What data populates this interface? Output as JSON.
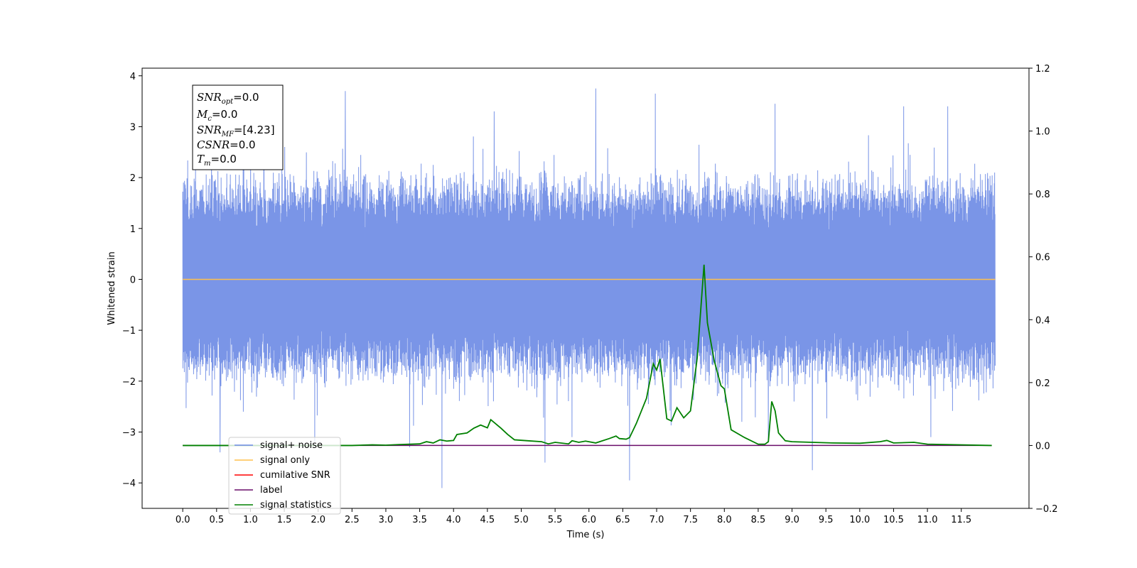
{
  "chart_data": {
    "type": "line",
    "title": "",
    "xlabel": "Time (s)",
    "ylabel": "Whitened strain",
    "y2label": "",
    "xlim": [
      -0.6,
      12.5
    ],
    "ylim": [
      -4.5,
      4.15
    ],
    "y2lim": [
      -0.2,
      1.2
    ],
    "x_ticks": [
      0.0,
      0.5,
      1.0,
      1.5,
      2.0,
      2.5,
      3.0,
      3.5,
      4.0,
      4.5,
      5.0,
      5.5,
      6.0,
      6.5,
      7.0,
      7.5,
      8.0,
      8.5,
      9.0,
      9.5,
      10.0,
      10.5,
      11.0,
      11.5
    ],
    "x_tick_labels": [
      "0.0",
      "0.5",
      "1.0",
      "1.5",
      "2.0",
      "2.5",
      "3.0",
      "3.5",
      "4.0",
      "4.5",
      "5.0",
      "5.5",
      "6.0",
      "6.5",
      "7.0",
      "7.5",
      "8.0",
      "8.5",
      "9.0",
      "9.5",
      "10.0",
      "10.5",
      "11.0",
      "11.5"
    ],
    "y_ticks": [
      -4,
      -3,
      -2,
      -1,
      0,
      1,
      2,
      3,
      4
    ],
    "y_tick_labels": [
      "−4",
      "−3",
      "−2",
      "−1",
      "0",
      "1",
      "2",
      "3",
      "4"
    ],
    "y2_ticks": [
      -0.2,
      0.0,
      0.2,
      0.4,
      0.6,
      0.8,
      1.0,
      1.2
    ],
    "y2_tick_labels": [
      "−0.2",
      "0.0",
      "0.2",
      "0.4",
      "0.6",
      "0.8",
      "1.0",
      "1.2"
    ],
    "grid": false,
    "legend_position": "lower-left",
    "legend": [
      {
        "label": "signal+ noise",
        "color": "#6c8ae4"
      },
      {
        "label": "signal only",
        "color": "#ffc04d"
      },
      {
        "label": "cumilative SNR",
        "color": "#ff0000"
      },
      {
        "label": "label",
        "color": "#6a0d6a"
      },
      {
        "label": "signal statistics",
        "color": "#008000"
      }
    ],
    "stats_box": [
      {
        "sym": "SNR",
        "sub": "opt",
        "value": "=0.0"
      },
      {
        "sym": "M",
        "sub": "c",
        "value": "=0.0"
      },
      {
        "sym": "SNR",
        "sub": "MF",
        "value": "=[4.23]"
      },
      {
        "sym": "CSNR",
        "sub": "",
        "value": "=0.0"
      },
      {
        "sym": "T",
        "sub": "m",
        "value": "=0.0"
      }
    ],
    "series": [
      {
        "name": "signal+ noise",
        "axis": "left",
        "color": "#6c8ae4",
        "style": "noise",
        "x_range": [
          0.0,
          12.0
        ],
        "envelope": [
          -2.2,
          2.2
        ],
        "spikes": [
          {
            "x": 0.55,
            "y": -3.4
          },
          {
            "x": 0.9,
            "y": 3.3
          },
          {
            "x": 1.2,
            "y": 3.1
          },
          {
            "x": 1.95,
            "y": -3.2
          },
          {
            "x": 2.4,
            "y": 3.7
          },
          {
            "x": 3.35,
            "y": -3.3
          },
          {
            "x": 3.83,
            "y": -4.1
          },
          {
            "x": 4.6,
            "y": 3.3
          },
          {
            "x": 5.35,
            "y": -3.6
          },
          {
            "x": 5.75,
            "y": -3.1
          },
          {
            "x": 6.1,
            "y": 3.75
          },
          {
            "x": 6.6,
            "y": -3.95
          },
          {
            "x": 6.98,
            "y": 3.65
          },
          {
            "x": 8.65,
            "y": -3.2
          },
          {
            "x": 8.75,
            "y": 3.45
          },
          {
            "x": 9.3,
            "y": -3.75
          },
          {
            "x": 10.65,
            "y": 3.4
          },
          {
            "x": 11.3,
            "y": 3.4
          },
          {
            "x": 11.05,
            "y": -3.1
          }
        ]
      },
      {
        "name": "signal only",
        "axis": "left",
        "color": "#ffc04d",
        "x": [
          0.0,
          12.0
        ],
        "y": [
          0.0,
          0.0
        ]
      },
      {
        "name": "label",
        "axis": "right",
        "color": "#6a0d6a",
        "x": [
          0.0,
          11.95
        ],
        "y": [
          0.0,
          0.0
        ]
      },
      {
        "name": "signal statistics",
        "axis": "right",
        "color": "#008000",
        "x": [
          0.0,
          2.5,
          2.8,
          3.0,
          3.2,
          3.5,
          3.6,
          3.7,
          3.8,
          3.9,
          4.0,
          4.05,
          4.2,
          4.3,
          4.4,
          4.5,
          4.55,
          4.7,
          4.8,
          4.9,
          5.1,
          5.3,
          5.4,
          5.5,
          5.7,
          5.75,
          5.85,
          5.95,
          6.1,
          6.3,
          6.4,
          6.45,
          6.55,
          6.6,
          6.7,
          6.85,
          6.95,
          7.0,
          7.05,
          7.15,
          7.22,
          7.3,
          7.4,
          7.5,
          7.6,
          7.7,
          7.75,
          7.85,
          7.95,
          8.0,
          8.1,
          8.3,
          8.5,
          8.6,
          8.65,
          8.7,
          8.75,
          8.8,
          8.9,
          9.0,
          9.3,
          9.6,
          10.0,
          10.3,
          10.4,
          10.5,
          10.8,
          11.0,
          11.95
        ],
        "y": [
          0.0,
          0.0,
          0.002,
          0.001,
          0.003,
          0.005,
          0.012,
          0.008,
          0.018,
          0.014,
          0.016,
          0.035,
          0.04,
          0.055,
          0.065,
          0.056,
          0.082,
          0.055,
          0.035,
          0.018,
          0.015,
          0.012,
          0.005,
          0.01,
          0.005,
          0.015,
          0.01,
          0.014,
          0.008,
          0.022,
          0.03,
          0.022,
          0.02,
          0.025,
          0.07,
          0.15,
          0.26,
          0.24,
          0.275,
          0.085,
          0.078,
          0.12,
          0.088,
          0.11,
          0.28,
          0.575,
          0.39,
          0.27,
          0.19,
          0.18,
          0.05,
          0.025,
          0.004,
          0.004,
          0.012,
          0.14,
          0.11,
          0.04,
          0.015,
          0.012,
          0.01,
          0.008,
          0.007,
          0.012,
          0.016,
          0.008,
          0.01,
          0.004,
          0.0
        ]
      }
    ]
  }
}
